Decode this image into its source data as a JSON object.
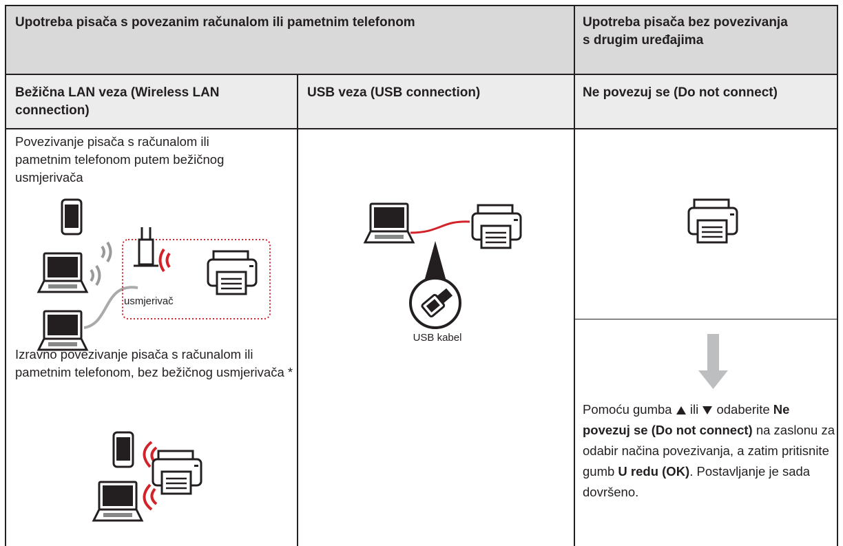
{
  "header": {
    "connected": "Upotreba pisača s povezanim računalom ili pametnim telefonom",
    "standalone": "Upotreba pisača bez povezivanja s drugim uređajima"
  },
  "subheader": {
    "wireless": "Bežična LAN veza (Wireless LAN connection)",
    "usb": "USB veza (USB connection)",
    "none": "Ne povezuj se (Do not connect)"
  },
  "wireless": {
    "router_text": "Povezivanje pisača s računalom ili pametnim telefonom putem bežičnog usmjerivača",
    "router_label": "usmjerivač",
    "direct_text": "Izravno povezivanje pisača s računalom ili pametnim telefonom, bez bežičnog usmjerivača *"
  },
  "usb": {
    "cable_label": "USB kabel"
  },
  "none": {
    "instruction": {
      "part1": "Pomoću gumba",
      "part2": "ili",
      "part3": "odaberite",
      "bold1": "Ne povezuj se (Do not connect)",
      "part4": "na zaslonu za odabir načina povezivanja, a zatim pritisnite gumb",
      "bold2": "U redu (OK)",
      "part5": ". Postavljanje je sada dovršeno."
    }
  }
}
